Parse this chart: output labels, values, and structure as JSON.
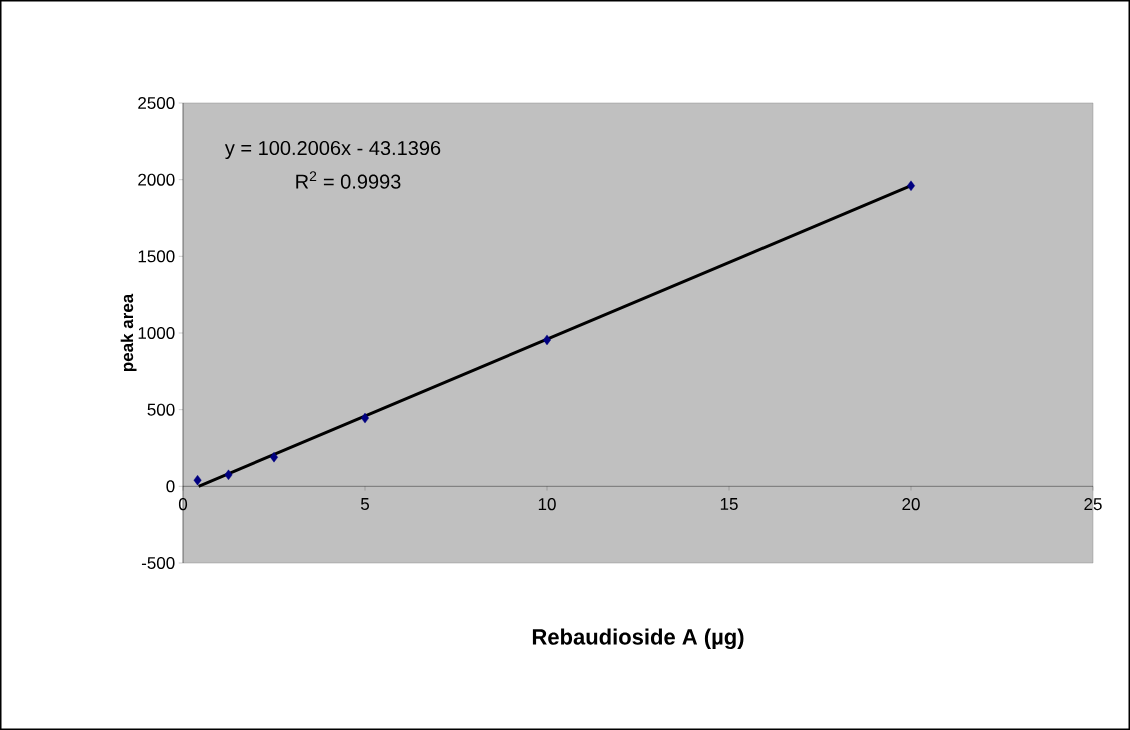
{
  "chart_data": {
    "type": "scatter",
    "xlabel": "Rebaudioside A  (µg)",
    "ylabel": "peak area",
    "xlim": [
      0,
      25
    ],
    "xticks": [
      0,
      5,
      10,
      15,
      20,
      25
    ],
    "ylim": [
      -500,
      2500
    ],
    "yticks": [
      -500,
      0,
      500,
      1000,
      1500,
      2000,
      2500
    ],
    "marker": "diamond",
    "annotations": [
      "y = 100.2006x - 43.1396",
      "R$^{2}$ = 0.9993"
    ],
    "series": [
      {
        "color": "#000080",
        "x": [
          0.4,
          1.25,
          2.5,
          5,
          10,
          20
        ],
        "values": [
          40,
          75,
          190,
          445,
          955,
          1960
        ]
      },
      {
        "type": "line",
        "color": "#000000",
        "marker": "none",
        "x": [
          0.43,
          20
        ],
        "values": [
          0,
          1961
        ]
      }
    ]
  }
}
